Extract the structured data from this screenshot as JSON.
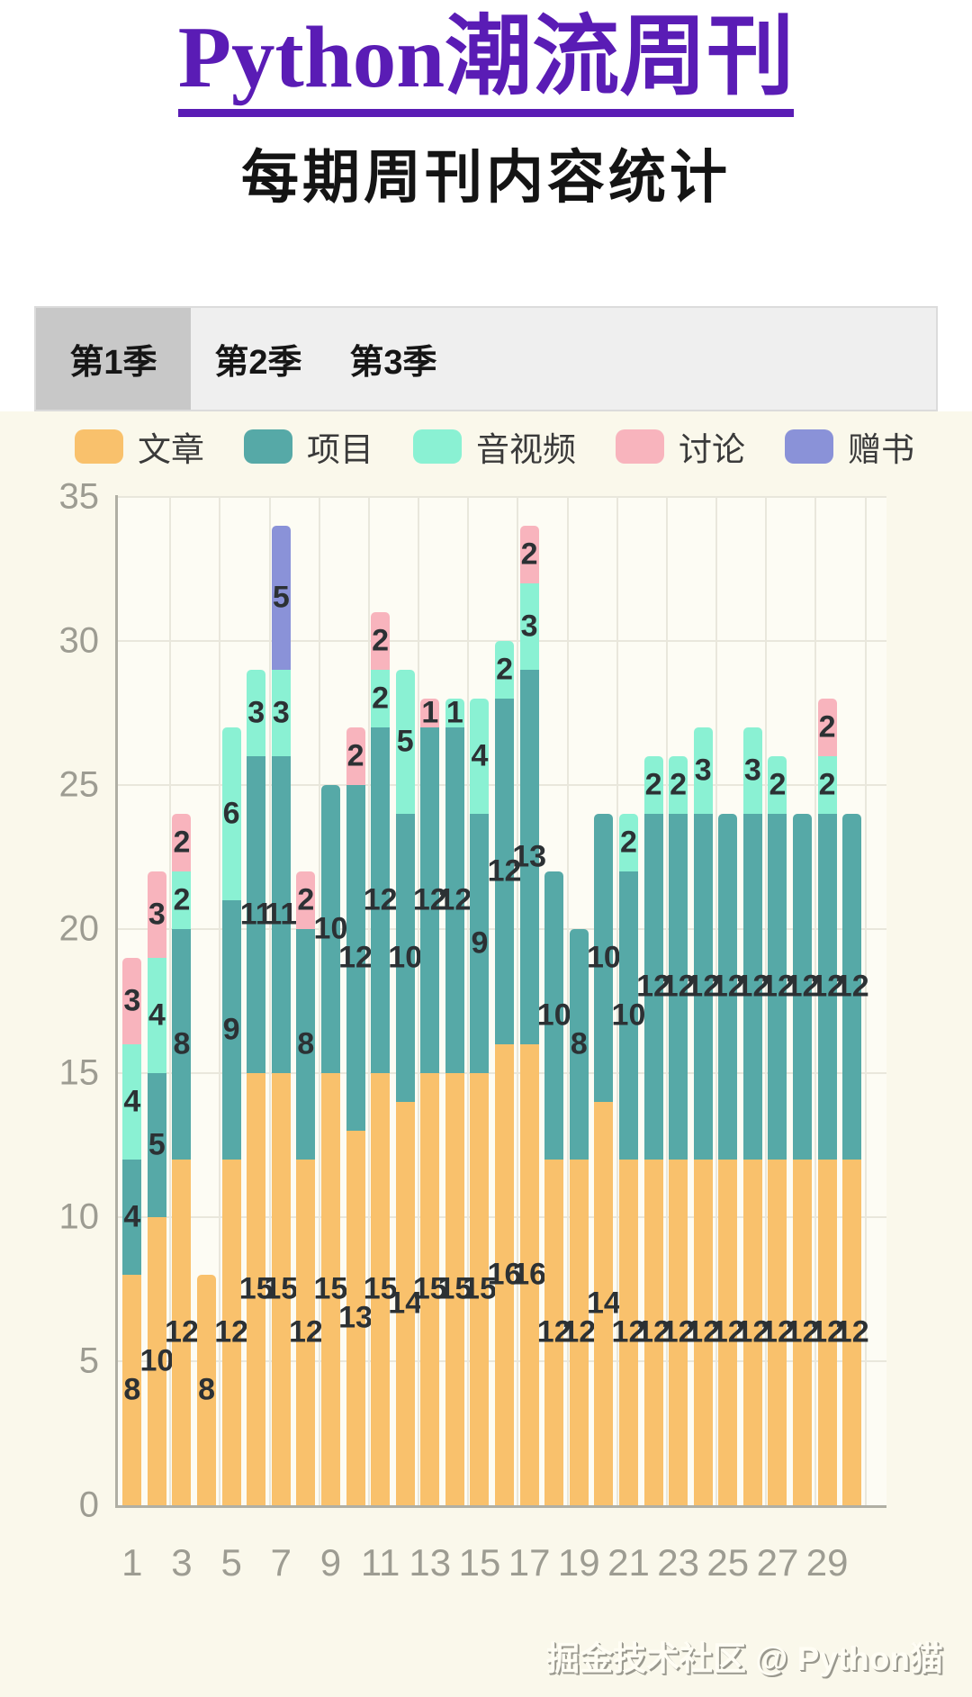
{
  "page": {
    "background": "#FAF8EB",
    "top_background": "#FFFFFF"
  },
  "header": {
    "title": "Python潮流周刊",
    "title_color": "#5A1CB5",
    "subtitle": "每期周刊内容统计"
  },
  "tabs": {
    "items": [
      {
        "label": "第1季",
        "active": true
      },
      {
        "label": "第2季",
        "active": false
      },
      {
        "label": "第3季",
        "active": false
      }
    ]
  },
  "legend": {
    "items": [
      {
        "label": "文章",
        "color": "#F9C16C"
      },
      {
        "label": "项目",
        "color": "#56A9A7"
      },
      {
        "label": "音视频",
        "color": "#8AF1D3"
      },
      {
        "label": "讨论",
        "color": "#F8B4BD"
      },
      {
        "label": "赠书",
        "color": "#8A92D8"
      }
    ]
  },
  "chart_data": {
    "type": "bar",
    "stacked": true,
    "title": "每期周刊内容统计",
    "xlabel": "",
    "ylabel": "",
    "ylim": [
      0,
      35
    ],
    "y_ticks": [
      0,
      5,
      10,
      15,
      20,
      25,
      30,
      35
    ],
    "x_tick_labels": [
      "1",
      "3",
      "5",
      "7",
      "9",
      "11",
      "13",
      "15",
      "17",
      "19",
      "21",
      "23",
      "25",
      "27",
      "29"
    ],
    "grid": true,
    "legend_position": "top",
    "categories": [
      1,
      2,
      3,
      4,
      5,
      6,
      7,
      8,
      9,
      10,
      11,
      12,
      13,
      14,
      15,
      16,
      17,
      18,
      19,
      20,
      21,
      22,
      23,
      24,
      25,
      26,
      27,
      28,
      29,
      30
    ],
    "series": [
      {
        "name": "文章",
        "color": "#F9C16C",
        "values": [
          8,
          10,
          12,
          8,
          12,
          15,
          15,
          12,
          15,
          13,
          15,
          14,
          15,
          15,
          15,
          16,
          16,
          12,
          12,
          14,
          12,
          12,
          12,
          12,
          12,
          12,
          12,
          12,
          12,
          12
        ]
      },
      {
        "name": "项目",
        "color": "#56A9A7",
        "values": [
          4,
          5,
          8,
          0,
          9,
          11,
          11,
          8,
          10,
          12,
          12,
          10,
          12,
          12,
          9,
          12,
          13,
          10,
          8,
          10,
          10,
          12,
          12,
          12,
          12,
          12,
          12,
          12,
          12,
          12
        ]
      },
      {
        "name": "音视频",
        "color": "#8AF1D3",
        "values": [
          4,
          4,
          2,
          0,
          6,
          3,
          3,
          0,
          0,
          0,
          2,
          5,
          0,
          1,
          4,
          2,
          3,
          0,
          0,
          0,
          2,
          2,
          2,
          3,
          0,
          3,
          2,
          0,
          2,
          0
        ]
      },
      {
        "name": "讨论",
        "color": "#F8B4BD",
        "values": [
          3,
          3,
          2,
          0,
          0,
          0,
          0,
          2,
          0,
          2,
          2,
          0,
          1,
          0,
          0,
          0,
          2,
          0,
          0,
          0,
          0,
          0,
          0,
          0,
          0,
          0,
          0,
          0,
          2,
          0
        ]
      },
      {
        "name": "赠书",
        "color": "#8A92D8",
        "values": [
          0,
          0,
          0,
          0,
          0,
          0,
          5,
          0,
          0,
          0,
          0,
          0,
          0,
          0,
          0,
          0,
          0,
          0,
          0,
          0,
          0,
          0,
          0,
          0,
          0,
          0,
          0,
          0,
          0,
          0
        ]
      }
    ]
  },
  "footer": {
    "credit": "掘金技术社区 @ Python猫"
  }
}
